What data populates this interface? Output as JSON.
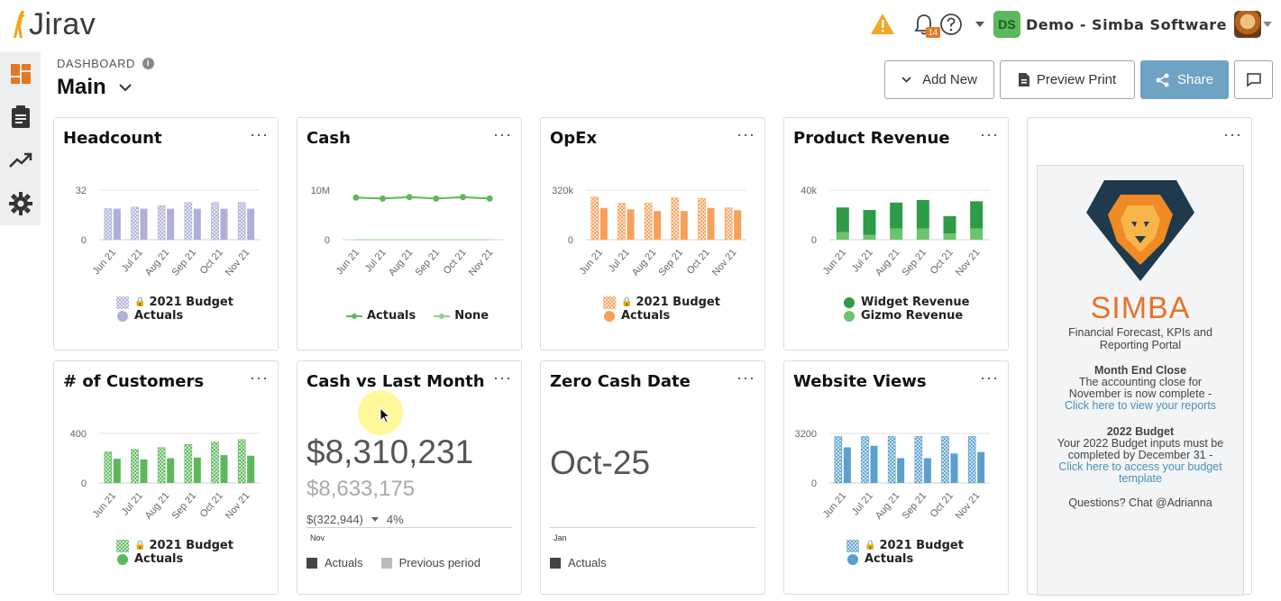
{
  "app": {
    "brand": "Jirav",
    "company": "Demo - Simba Software",
    "avatar_initials": "DS",
    "notification_count": "14",
    "colors": {
      "accent": "#6fa3c4",
      "warning": "#f5a623",
      "badge": "#e87722"
    }
  },
  "header": {
    "section_label": "DASHBOARD",
    "title": "Main",
    "buttons": {
      "add_new": "Add New",
      "preview_print": "Preview Print",
      "share": "Share"
    }
  },
  "sidebar": {
    "items": [
      {
        "name": "dashboard-icon",
        "active": true
      },
      {
        "name": "report-icon",
        "active": false
      },
      {
        "name": "trend-icon",
        "active": false
      },
      {
        "name": "gear-icon",
        "active": false
      }
    ]
  },
  "months": [
    "Jun 21",
    "Jul 21",
    "Aug 21",
    "Sep 21",
    "Oct 21",
    "Nov 21"
  ],
  "cards": {
    "headcount": {
      "title": "Headcount",
      "menu": "···",
      "ymax": "32",
      "ymin": "0",
      "legend": [
        "2021 Budget",
        "Actuals"
      ],
      "color": "#aeb0d6"
    },
    "cash": {
      "title": "Cash",
      "menu": "···",
      "ymax": "10M",
      "ymin": "0",
      "legend": [
        "Actuals",
        "None"
      ],
      "color": "#5cb85c"
    },
    "opex": {
      "title": "OpEx",
      "menu": "···",
      "ymax": "320k",
      "ymin": "0",
      "legend": [
        "2021 Budget",
        "Actuals"
      ],
      "color": "#f7a05a"
    },
    "product_revenue": {
      "title": "Product Revenue",
      "menu": "···",
      "ymax": "40k",
      "ymin": "0",
      "legend": [
        "Widget Revenue",
        "Gizmo Revenue"
      ],
      "colors": [
        "#2e9b48",
        "#6cc46e"
      ]
    },
    "customers": {
      "title": "# of Customers",
      "menu": "···",
      "ymax": "400",
      "ymin": "0",
      "legend": [
        "2021 Budget",
        "Actuals"
      ],
      "color": "#5cb85c"
    },
    "cash_vs_last": {
      "title": "Cash vs Last Month",
      "menu": "···",
      "value": "$8,310,231",
      "previous": "$8,633,175",
      "delta": "$(322,944)",
      "delta_pct": "4%",
      "month": "Nov",
      "legend": [
        "Actuals",
        "Previous period"
      ]
    },
    "zero_cash": {
      "title": "Zero Cash Date",
      "menu": "···",
      "value": "Oct-25",
      "month": "Jan",
      "legend": [
        "Actuals"
      ]
    },
    "website_views": {
      "title": "Website Views",
      "menu": "···",
      "ymax": "3200",
      "ymin": "0",
      "legend": [
        "2021 Budget",
        "Actuals"
      ],
      "color": "#5a9fd0"
    },
    "simba_menu": "···"
  },
  "chart_data": [
    {
      "type": "bar",
      "title": "Headcount",
      "categories": [
        "Jun 21",
        "Jul 21",
        "Aug 21",
        "Sep 21",
        "Oct 21",
        "Nov 21"
      ],
      "ylim": [
        0,
        32
      ],
      "series": [
        {
          "name": "2021 Budget",
          "values": [
            20,
            21,
            22,
            24,
            24,
            24
          ]
        },
        {
          "name": "Actuals",
          "values": [
            20,
            20,
            20,
            20,
            20,
            20
          ]
        }
      ]
    },
    {
      "type": "line",
      "title": "Cash",
      "categories": [
        "Jun 21",
        "Jul 21",
        "Aug 21",
        "Sep 21",
        "Oct 21",
        "Nov 21"
      ],
      "ylim": [
        0,
        10000000
      ],
      "series": [
        {
          "name": "Actuals",
          "values": [
            8500000,
            8300000,
            8600000,
            8300000,
            8600000,
            8300000
          ]
        },
        {
          "name": "None",
          "values": [
            0,
            0,
            0,
            0,
            0,
            0
          ]
        }
      ]
    },
    {
      "type": "bar",
      "title": "OpEx",
      "categories": [
        "Jun 21",
        "Jul 21",
        "Aug 21",
        "Sep 21",
        "Oct 21",
        "Nov 21"
      ],
      "ylim": [
        0,
        320000
      ],
      "series": [
        {
          "name": "2021 Budget",
          "values": [
            275000,
            235000,
            235000,
            270000,
            265000,
            205000
          ]
        },
        {
          "name": "Actuals",
          "values": [
            205000,
            195000,
            185000,
            185000,
            205000,
            190000
          ]
        }
      ]
    },
    {
      "type": "bar",
      "title": "Product Revenue",
      "categories": [
        "Jun 21",
        "Jul 21",
        "Aug 21",
        "Sep 21",
        "Oct 21",
        "Nov 21"
      ],
      "ylim": [
        0,
        40000
      ],
      "series": [
        {
          "name": "Widget Revenue",
          "values": [
            20000,
            20000,
            21000,
            23000,
            14000,
            22000
          ]
        },
        {
          "name": "Gizmo Revenue",
          "values": [
            6000,
            4000,
            9000,
            9000,
            5000,
            9000
          ]
        }
      ]
    },
    {
      "type": "bar",
      "title": "# of Customers",
      "categories": [
        "Jun 21",
        "Jul 21",
        "Aug 21",
        "Sep 21",
        "Oct 21",
        "Nov 21"
      ],
      "ylim": [
        0,
        400
      ],
      "series": [
        {
          "name": "2021 Budget",
          "values": [
            250,
            270,
            285,
            310,
            330,
            350
          ]
        },
        {
          "name": "Actuals",
          "values": [
            195,
            190,
            200,
            205,
            225,
            220
          ]
        }
      ]
    },
    {
      "type": "bar",
      "title": "Website Views",
      "categories": [
        "Jun 21",
        "Jul 21",
        "Aug 21",
        "Sep 21",
        "Oct 21",
        "Nov 21"
      ],
      "ylim": [
        0,
        3200
      ],
      "series": [
        {
          "name": "2021 Budget",
          "values": [
            3000,
            3000,
            3000,
            3000,
            3000,
            3000
          ]
        },
        {
          "name": "Actuals",
          "values": [
            2300,
            2400,
            1600,
            1600,
            1900,
            2000
          ]
        }
      ]
    }
  ],
  "simba": {
    "wordmark": "SIMBA",
    "tagline": "Financial Forecast, KPIs and Reporting Portal",
    "close_heading": "Month End Close",
    "close_text": "The accounting close for November is now complete -",
    "close_link": "Click here to view your reports",
    "budget_heading": "2022 Budget",
    "budget_text": "Your 2022 Budget inputs must be completed by December 31 -",
    "budget_link": "Click here to access your budget template",
    "questions": "Questions? Chat @Adrianna"
  }
}
